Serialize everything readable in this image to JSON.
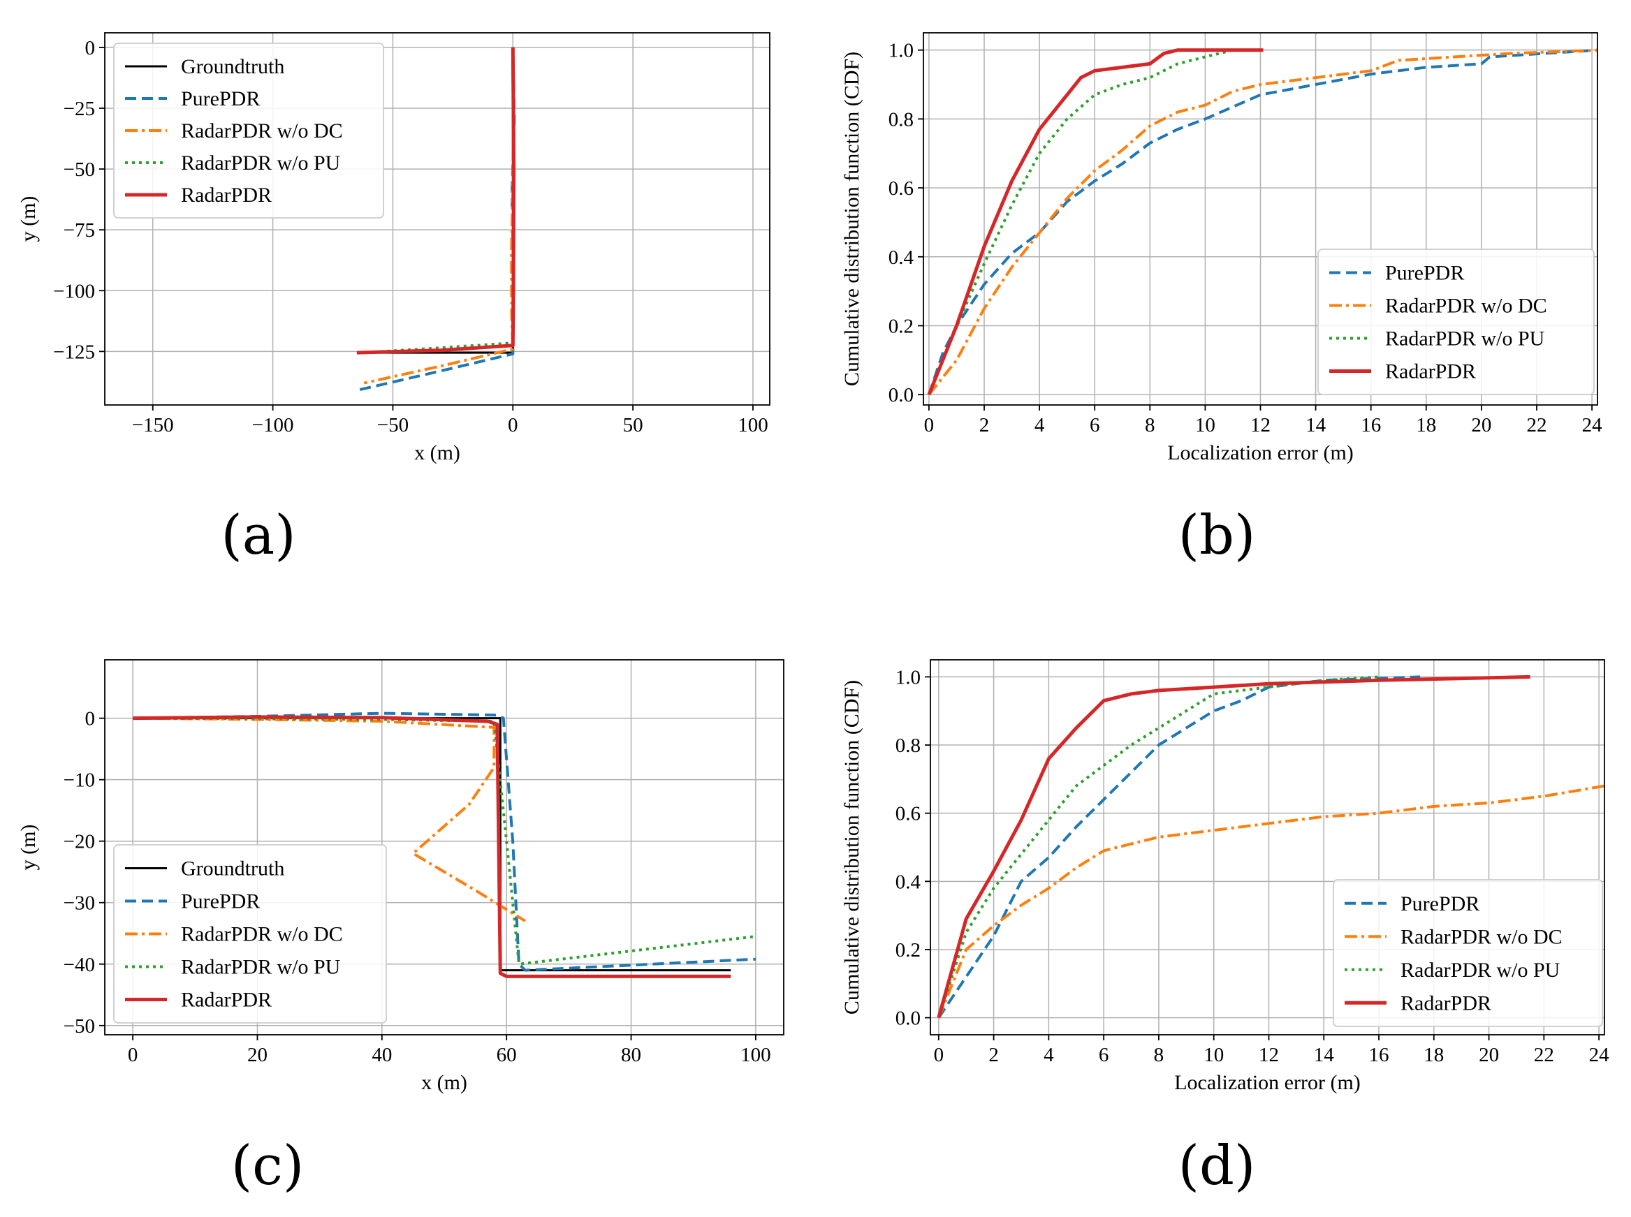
{
  "figure": {
    "labels": [
      "(a)",
      "(b)",
      "(c)",
      "(d)"
    ]
  },
  "colors": {
    "groundtruth": "#000000",
    "purepdr": "#1f77b4",
    "radar_wo_dc": "#ff7f0e",
    "radar_wo_pu": "#2ca02c",
    "radarpdr": "#d62728"
  },
  "chart_data": [
    {
      "id": "a",
      "type": "line",
      "xlabel": "x (m)",
      "ylabel": "y (m)",
      "xlim": [
        -170,
        107
      ],
      "ylim": [
        -147,
        6
      ],
      "xticks": [
        -150,
        -100,
        -50,
        0,
        50,
        100
      ],
      "xtick_labels": [
        "−150",
        "−100",
        "−50",
        "0",
        "50",
        "100"
      ],
      "yticks": [
        0,
        -25,
        -50,
        -75,
        -100,
        -125
      ],
      "ytick_labels": [
        "0",
        "−25",
        "−50",
        "−75",
        "−100",
        "−125"
      ],
      "grid": true,
      "legend_position": "top-left",
      "series": [
        {
          "name": "Groundtruth",
          "style": "solid",
          "color_key": "groundtruth",
          "points": [
            [
              0,
              0
            ],
            [
              0,
              -125.5
            ],
            [
              -65,
              -125.5
            ]
          ]
        },
        {
          "name": "PurePDR",
          "style": "dashed",
          "color_key": "purepdr",
          "points": [
            [
              0,
              0
            ],
            [
              0.6,
              -30
            ],
            [
              -0.4,
              -60
            ],
            [
              0.3,
              -95
            ],
            [
              0,
              -126
            ],
            [
              -30,
              -133
            ],
            [
              -65,
              -141
            ]
          ]
        },
        {
          "name": "RadarPDR w/o DC",
          "style": "dashdot",
          "color_key": "radar_wo_dc",
          "points": [
            [
              0,
              0
            ],
            [
              0.3,
              -40
            ],
            [
              -0.6,
              -85
            ],
            [
              -0.5,
              -110
            ],
            [
              0,
              -124
            ],
            [
              -30,
              -131
            ],
            [
              -62,
              -138
            ]
          ]
        },
        {
          "name": "RadarPDR w/o PU",
          "style": "dotted",
          "color_key": "radar_wo_pu",
          "points": [
            [
              0,
              0
            ],
            [
              0.2,
              -60
            ],
            [
              0,
              -121.5
            ],
            [
              -30,
              -123.5
            ],
            [
              -62,
              -125.5
            ]
          ]
        },
        {
          "name": "RadarPDR",
          "style": "solid",
          "color_key": "radarpdr",
          "points": [
            [
              0,
              0
            ],
            [
              0.4,
              -50
            ],
            [
              0.2,
              -100
            ],
            [
              0,
              -122.5
            ],
            [
              -30,
              -124.5
            ],
            [
              -65,
              -125.5
            ]
          ]
        }
      ]
    },
    {
      "id": "b",
      "type": "line",
      "xlabel": "Localization error (m)",
      "ylabel": "Cumulative distribution function (CDF)",
      "xlim": [
        -0.2,
        24.2
      ],
      "ylim": [
        -0.03,
        1.05
      ],
      "xticks": [
        0,
        2,
        4,
        6,
        8,
        10,
        12,
        14,
        16,
        18,
        20,
        22,
        24
      ],
      "xtick_labels": [
        "0",
        "2",
        "4",
        "6",
        "8",
        "10",
        "12",
        "14",
        "16",
        "18",
        "20",
        "22",
        "24"
      ],
      "yticks": [
        0.0,
        0.2,
        0.4,
        0.6,
        0.8,
        1.0
      ],
      "ytick_labels": [
        "0.0",
        "0.2",
        "0.4",
        "0.6",
        "0.8",
        "1.0"
      ],
      "grid": true,
      "legend_position": "lower-right",
      "series": [
        {
          "name": "PurePDR",
          "style": "dashed",
          "color_key": "purepdr",
          "points": [
            [
              0,
              0
            ],
            [
              0.5,
              0.12
            ],
            [
              1,
              0.2
            ],
            [
              2,
              0.32
            ],
            [
              3,
              0.41
            ],
            [
              4,
              0.47
            ],
            [
              5,
              0.56
            ],
            [
              6,
              0.62
            ],
            [
              7,
              0.67
            ],
            [
              8,
              0.73
            ],
            [
              9,
              0.77
            ],
            [
              10,
              0.8
            ],
            [
              12,
              0.87
            ],
            [
              14,
              0.9
            ],
            [
              16,
              0.93
            ],
            [
              18,
              0.95
            ],
            [
              20,
              0.96
            ],
            [
              20.3,
              0.98
            ],
            [
              24.2,
              1.0
            ]
          ]
        },
        {
          "name": "RadarPDR w/o DC",
          "style": "dashdot",
          "color_key": "radar_wo_dc",
          "points": [
            [
              0,
              0
            ],
            [
              1,
              0.1
            ],
            [
              2,
              0.25
            ],
            [
              3,
              0.37
            ],
            [
              4,
              0.47
            ],
            [
              5,
              0.57
            ],
            [
              6,
              0.65
            ],
            [
              7,
              0.71
            ],
            [
              8,
              0.78
            ],
            [
              9,
              0.82
            ],
            [
              10,
              0.84
            ],
            [
              11,
              0.88
            ],
            [
              12,
              0.9
            ],
            [
              14,
              0.92
            ],
            [
              16,
              0.94
            ],
            [
              17,
              0.97
            ],
            [
              19,
              0.98
            ],
            [
              21,
              0.99
            ],
            [
              24.2,
              1.0
            ]
          ]
        },
        {
          "name": "RadarPDR w/o PU",
          "style": "dotted",
          "color_key": "radar_wo_pu",
          "points": [
            [
              0,
              0
            ],
            [
              0.5,
              0.1
            ],
            [
              1,
              0.2
            ],
            [
              2,
              0.38
            ],
            [
              3,
              0.55
            ],
            [
              4,
              0.7
            ],
            [
              5,
              0.8
            ],
            [
              6,
              0.87
            ],
            [
              7,
              0.9
            ],
            [
              8,
              0.92
            ],
            [
              9,
              0.96
            ],
            [
              10,
              0.98
            ],
            [
              11,
              1.0
            ]
          ]
        },
        {
          "name": "RadarPDR",
          "style": "solid",
          "color_key": "radarpdr",
          "points": [
            [
              0,
              0
            ],
            [
              0.5,
              0.1
            ],
            [
              1,
              0.2
            ],
            [
              2,
              0.43
            ],
            [
              3,
              0.62
            ],
            [
              4,
              0.77
            ],
            [
              5,
              0.87
            ],
            [
              5.5,
              0.92
            ],
            [
              6,
              0.94
            ],
            [
              7,
              0.95
            ],
            [
              8,
              0.96
            ],
            [
              8.5,
              0.99
            ],
            [
              9,
              1.0
            ],
            [
              12.1,
              1.0
            ]
          ]
        }
      ]
    },
    {
      "id": "c",
      "type": "line",
      "xlabel": "x (m)",
      "ylabel": "y (m)",
      "xlim": [
        -4.5,
        104.5
      ],
      "ylim": [
        -51.5,
        9.5
      ],
      "xticks": [
        0,
        20,
        40,
        60,
        80,
        100
      ],
      "xtick_labels": [
        "0",
        "20",
        "40",
        "60",
        "80",
        "100"
      ],
      "yticks": [
        0,
        -10,
        -20,
        -30,
        -40,
        -50
      ],
      "ytick_labels": [
        "0",
        "−10",
        "−20",
        "−30",
        "−40",
        "−50"
      ],
      "grid": true,
      "legend_position": "lower-left",
      "series": [
        {
          "name": "Groundtruth",
          "style": "solid",
          "color_key": "groundtruth",
          "points": [
            [
              0,
              0
            ],
            [
              59,
              0
            ],
            [
              59,
              -41
            ],
            [
              96,
              -41
            ]
          ]
        },
        {
          "name": "PurePDR",
          "style": "dashed",
          "color_key": "purepdr",
          "points": [
            [
              0,
              0
            ],
            [
              20,
              0.3
            ],
            [
              40,
              0.8
            ],
            [
              58.5,
              0.5
            ],
            [
              59.5,
              0
            ],
            [
              61,
              -20
            ],
            [
              62,
              -40
            ],
            [
              63,
              -41
            ],
            [
              100,
              -39.2
            ]
          ]
        },
        {
          "name": "RadarPDR w/o DC",
          "style": "dashdot",
          "color_key": "radar_wo_dc",
          "points": [
            [
              0,
              0
            ],
            [
              20,
              -0.2
            ],
            [
              40,
              -0.5
            ],
            [
              58,
              -1.5
            ],
            [
              58,
              -8
            ],
            [
              54,
              -14
            ],
            [
              45,
              -22
            ],
            [
              55,
              -28
            ],
            [
              63,
              -33
            ]
          ]
        },
        {
          "name": "RadarPDR w/o PU",
          "style": "dotted",
          "color_key": "radar_wo_pu",
          "points": [
            [
              0,
              0
            ],
            [
              20,
              -0.1
            ],
            [
              40,
              -0.2
            ],
            [
              58,
              -0.5
            ],
            [
              60,
              -20
            ],
            [
              62,
              -40
            ],
            [
              100,
              -35.5
            ]
          ]
        },
        {
          "name": "RadarPDR",
          "style": "solid",
          "color_key": "radarpdr",
          "points": [
            [
              0,
              0
            ],
            [
              20,
              0.2
            ],
            [
              40,
              0.1
            ],
            [
              57,
              -0.5
            ],
            [
              58.5,
              -1
            ],
            [
              59,
              -41.5
            ],
            [
              60,
              -42
            ],
            [
              96,
              -42
            ]
          ]
        }
      ]
    },
    {
      "id": "d",
      "type": "line",
      "xlabel": "Localization error (m)",
      "ylabel": "Cumulative distribution function (CDF)",
      "xlim": [
        -0.3,
        24.2
      ],
      "ylim": [
        -0.05,
        1.05
      ],
      "xticks": [
        0,
        2,
        4,
        6,
        8,
        10,
        12,
        14,
        16,
        18,
        20,
        22,
        24
      ],
      "xtick_labels": [
        "0",
        "2",
        "4",
        "6",
        "8",
        "10",
        "12",
        "14",
        "16",
        "18",
        "20",
        "22",
        "24"
      ],
      "yticks": [
        0.0,
        0.2,
        0.4,
        0.6,
        0.8,
        1.0
      ],
      "ytick_labels": [
        "0.0",
        "0.2",
        "0.4",
        "0.6",
        "0.8",
        "1.0"
      ],
      "grid": true,
      "legend_position": "lower-right",
      "series": [
        {
          "name": "PurePDR",
          "style": "dashed",
          "color_key": "purepdr",
          "points": [
            [
              0,
              0
            ],
            [
              1,
              0.12
            ],
            [
              2,
              0.24
            ],
            [
              3,
              0.4
            ],
            [
              4,
              0.47
            ],
            [
              5,
              0.56
            ],
            [
              6,
              0.64
            ],
            [
              7,
              0.72
            ],
            [
              8,
              0.8
            ],
            [
              9,
              0.85
            ],
            [
              10,
              0.9
            ],
            [
              11,
              0.93
            ],
            [
              12,
              0.97
            ],
            [
              14,
              0.99
            ],
            [
              17.5,
              1.0
            ]
          ]
        },
        {
          "name": "RadarPDR w/o DC",
          "style": "dashdot",
          "color_key": "radar_wo_dc",
          "points": [
            [
              0,
              0
            ],
            [
              1,
              0.2
            ],
            [
              2,
              0.27
            ],
            [
              3,
              0.33
            ],
            [
              4,
              0.38
            ],
            [
              5,
              0.44
            ],
            [
              6,
              0.49
            ],
            [
              7,
              0.51
            ],
            [
              8,
              0.53
            ],
            [
              10,
              0.55
            ],
            [
              12,
              0.57
            ],
            [
              14,
              0.59
            ],
            [
              16,
              0.6
            ],
            [
              18,
              0.62
            ],
            [
              20,
              0.63
            ],
            [
              22,
              0.65
            ],
            [
              24.2,
              0.68
            ]
          ]
        },
        {
          "name": "RadarPDR w/o PU",
          "style": "dotted",
          "color_key": "radar_wo_pu",
          "points": [
            [
              0,
              0
            ],
            [
              1,
              0.25
            ],
            [
              2,
              0.38
            ],
            [
              3,
              0.48
            ],
            [
              4,
              0.58
            ],
            [
              5,
              0.68
            ],
            [
              6,
              0.74
            ],
            [
              7,
              0.8
            ],
            [
              8,
              0.85
            ],
            [
              9,
              0.9
            ],
            [
              10,
              0.95
            ],
            [
              11,
              0.96
            ],
            [
              12,
              0.97
            ],
            [
              13,
              0.98
            ],
            [
              14,
              0.99
            ],
            [
              16,
              1.0
            ]
          ]
        },
        {
          "name": "RadarPDR",
          "style": "solid",
          "color_key": "radarpdr",
          "points": [
            [
              0,
              0
            ],
            [
              1,
              0.29
            ],
            [
              2,
              0.43
            ],
            [
              3,
              0.58
            ],
            [
              4,
              0.76
            ],
            [
              5,
              0.85
            ],
            [
              6,
              0.93
            ],
            [
              7,
              0.95
            ],
            [
              8,
              0.96
            ],
            [
              10,
              0.97
            ],
            [
              12,
              0.98
            ],
            [
              16,
              0.99
            ],
            [
              21.5,
              1.0
            ]
          ]
        }
      ]
    }
  ]
}
